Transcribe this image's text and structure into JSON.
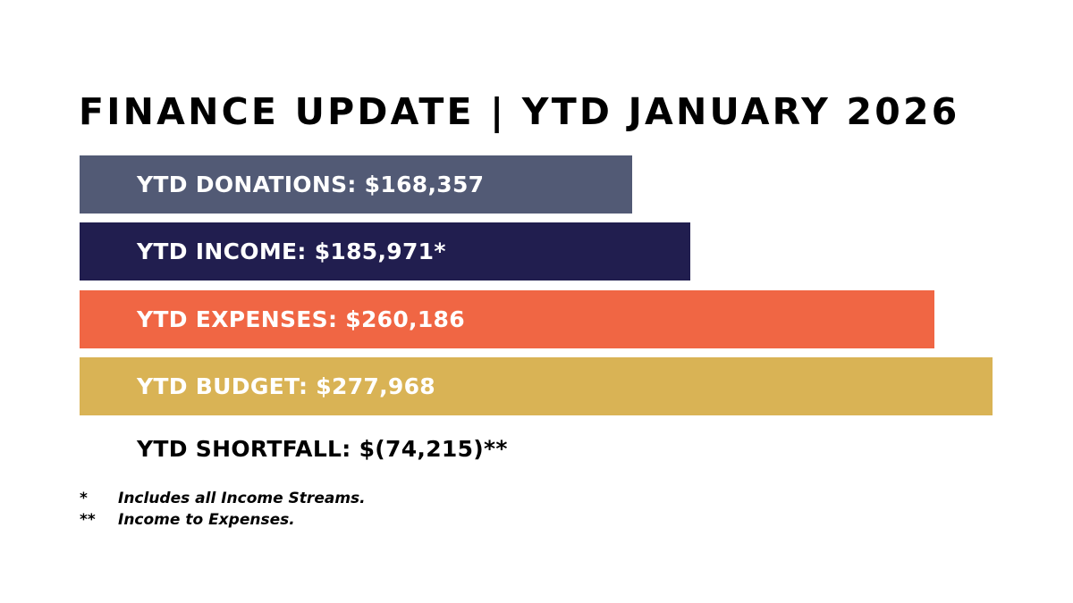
{
  "title": "FINANCE UPDATE | YTD JANUARY 2026",
  "chart_data": {
    "type": "bar",
    "orientation": "horizontal",
    "title": "FINANCE UPDATE | YTD JANUARY 2026",
    "categories": [
      "YTD DONATIONS",
      "YTD INCOME",
      "YTD EXPENSES",
      "YTD BUDGET"
    ],
    "values": [
      168357,
      185971,
      260186,
      277968
    ],
    "labels": [
      "YTD DONATIONS: $168,357",
      "YTD INCOME: $185,971*",
      "YTD EXPENSES: $260,186",
      "YTD BUDGET: $277,968"
    ],
    "colors": [
      "#525a75",
      "#211e4f",
      "#f06644",
      "#d9b355"
    ],
    "grid": false,
    "legend": "none"
  },
  "shortfall": "YTD SHORTFALL: $(74,215)**",
  "footnotes": [
    {
      "mark": "*",
      "text": "Includes all Income Streams."
    },
    {
      "mark": "**",
      "text": "Income to Expenses."
    }
  ]
}
